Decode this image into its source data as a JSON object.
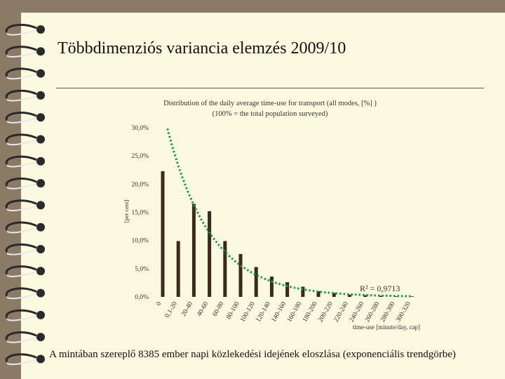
{
  "slide": {
    "title": "Többdimenziós variancia elemzés 2009/10",
    "caption": "A mintában szereplő 8385 ember napi közlekedési idejének eloszlása (exponenciális trendgörbe)"
  },
  "colors": {
    "background": "#8a7a66",
    "paper": "#fbf9df",
    "bars": "#3a2a1c",
    "trendline": "#1f9a4a"
  },
  "chart_data": {
    "type": "bar",
    "title": "Distribution of the daily average time-use for transport (all modes, [%] )",
    "subtitle": "(100% = the total population surveyed)",
    "xlabel": "time-use [minute/day, cap]",
    "ylabel": "[per cent]",
    "ylim": [
      0,
      30
    ],
    "yticks": [
      "0,0%",
      "5,0%",
      "10,0%",
      "15,0%",
      "20,0%",
      "25,0%",
      "30,0%"
    ],
    "categories": [
      "0",
      "0,1-20",
      "20-40",
      "40-60",
      "60-80",
      "80-100",
      "100-120",
      "120-140",
      "140-160",
      "160-180",
      "180-200",
      "200-220",
      "220-240",
      "240-260",
      "260-280",
      "280-300",
      "300-320"
    ],
    "series": [
      {
        "values": [
          22.3,
          9.9,
          16.5,
          15.2,
          9.9,
          7.6,
          5.3,
          3.6,
          2.6,
          1.8,
          1.0,
          0.7,
          0.4,
          0.3,
          0.2,
          0.1,
          0.1
        ]
      }
    ],
    "trendline": {
      "type": "exponential",
      "r2_label": "R² = 0,9713"
    },
    "grid": false
  }
}
